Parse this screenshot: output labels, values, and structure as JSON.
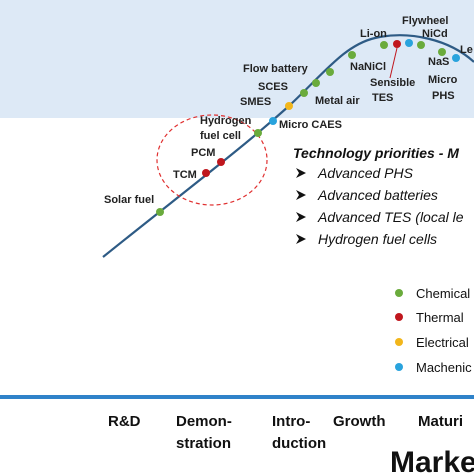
{
  "technologies": [
    "Solar fuel",
    "TCM",
    "PCM",
    "Hydrogen",
    "fuel cell",
    "Micro CAES",
    "SMES",
    "SCES",
    "Metal air",
    "Flow battery",
    "NaNiCl",
    "Li-on",
    "Flywheel",
    "NiCd",
    "Sensible",
    "TES",
    "NaS",
    "Micro",
    "PHS",
    "Le"
  ],
  "priorities": {
    "title": "Technology priorities - M",
    "items": [
      "Advanced PHS",
      "Advanced batteries",
      "Advanced TES (local le",
      "Hydrogen fuel cells"
    ]
  },
  "legend": [
    "Chemical",
    "Thermal",
    "Electrical",
    "Machenic"
  ],
  "stages": [
    "R&D",
    "Demon-",
    "stration",
    "Intro-",
    "duction",
    "Growth",
    "Maturi",
    "Marke"
  ]
}
